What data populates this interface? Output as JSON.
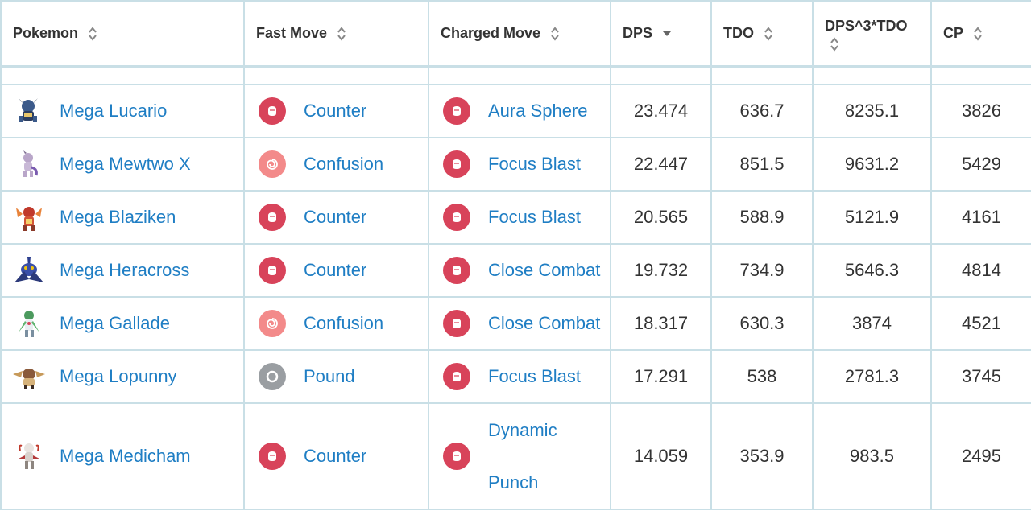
{
  "headers": {
    "pokemon": "Pokemon",
    "fast_move": "Fast Move",
    "charged_move": "Charged Move",
    "dps": "DPS",
    "tdo": "TDO",
    "dps3tdo": "DPS^3*TDO",
    "cp": "CP"
  },
  "sort": {
    "active_column": "DPS",
    "direction": "descending"
  },
  "colors": {
    "link": "#1f7ec4",
    "fighting": "#d8435a",
    "psychic": "#f38a8a",
    "normal": "#9a9ea2",
    "border": "#c9dfe6"
  },
  "rows": [
    {
      "pokemon": "Mega Lucario",
      "icon": "mega-lucario-sprite-icon",
      "fast": "Counter",
      "fast_type": "fighting",
      "charged": "Aura Sphere",
      "charged_type": "fighting",
      "dps": "23.474",
      "tdo": "636.7",
      "dps3tdo": "8235.1",
      "cp": "3826"
    },
    {
      "pokemon": "Mega Mewtwo X",
      "icon": "mega-mewtwo-x-sprite-icon",
      "fast": "Confusion",
      "fast_type": "psychic",
      "charged": "Focus Blast",
      "charged_type": "fighting",
      "dps": "22.447",
      "tdo": "851.5",
      "dps3tdo": "9631.2",
      "cp": "5429"
    },
    {
      "pokemon": "Mega Blaziken",
      "icon": "mega-blaziken-sprite-icon",
      "fast": "Counter",
      "fast_type": "fighting",
      "charged": "Focus Blast",
      "charged_type": "fighting",
      "dps": "20.565",
      "tdo": "588.9",
      "dps3tdo": "5121.9",
      "cp": "4161"
    },
    {
      "pokemon": "Mega Heracross",
      "icon": "mega-heracross-sprite-icon",
      "fast": "Counter",
      "fast_type": "fighting",
      "charged": "Close Combat",
      "charged_type": "fighting",
      "dps": "19.732",
      "tdo": "734.9",
      "dps3tdo": "5646.3",
      "cp": "4814"
    },
    {
      "pokemon": "Mega Gallade",
      "icon": "mega-gallade-sprite-icon",
      "fast": "Confusion",
      "fast_type": "psychic",
      "charged": "Close Combat",
      "charged_type": "fighting",
      "dps": "18.317",
      "tdo": "630.3",
      "dps3tdo": "3874",
      "cp": "4521"
    },
    {
      "pokemon": "Mega Lopunny",
      "icon": "mega-lopunny-sprite-icon",
      "fast": "Pound",
      "fast_type": "normal",
      "charged": "Focus Blast",
      "charged_type": "fighting",
      "dps": "17.291",
      "tdo": "538",
      "dps3tdo": "2781.3",
      "cp": "3745"
    },
    {
      "pokemon": "Mega Medicham",
      "icon": "mega-medicham-sprite-icon",
      "fast": "Counter",
      "fast_type": "fighting",
      "charged_line1": "Dynamic",
      "charged_line2": "Punch",
      "charged_type": "fighting",
      "dps": "14.059",
      "tdo": "353.9",
      "dps3tdo": "983.5",
      "cp": "2495"
    }
  ]
}
